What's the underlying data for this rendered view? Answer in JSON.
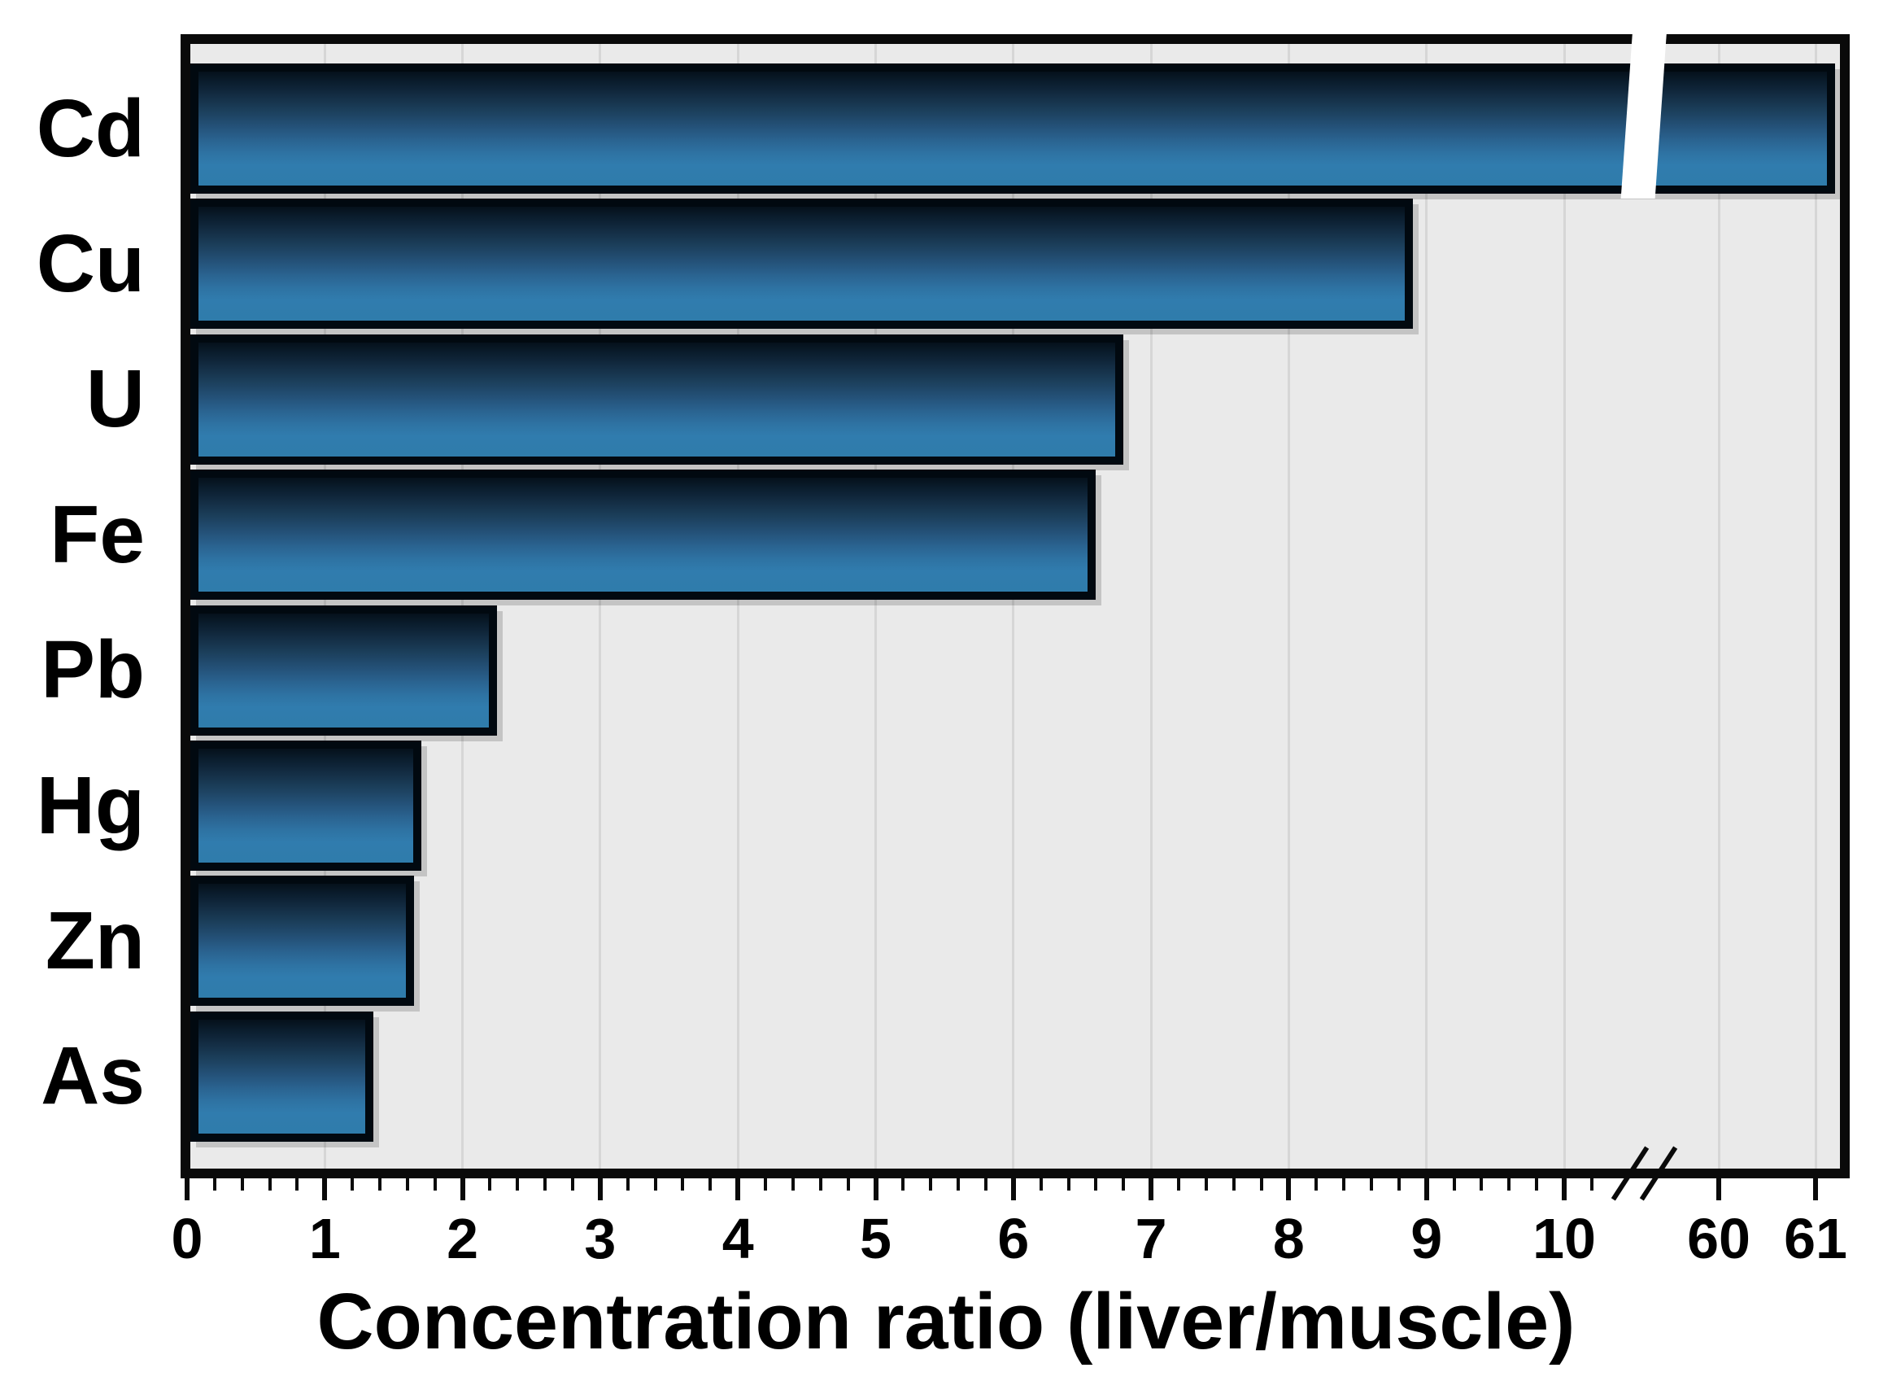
{
  "chart_data": {
    "type": "bar",
    "orientation": "horizontal",
    "title": "",
    "xlabel": "Concentration ratio (liver/muscle)",
    "ylabel": "",
    "categories": [
      "Cd",
      "Cu",
      "U",
      "Fe",
      "Pb",
      "Hg",
      "Zn",
      "As"
    ],
    "values": [
      61.2,
      8.9,
      6.8,
      6.6,
      2.25,
      1.7,
      1.65,
      1.35
    ],
    "x_axis": {
      "tick_values": [
        0,
        1,
        2,
        3,
        4,
        5,
        6,
        7,
        8,
        9,
        10,
        60,
        61
      ],
      "tick_labels": [
        "0",
        "1",
        "2",
        "3",
        "4",
        "5",
        "6",
        "7",
        "8",
        "9",
        "10",
        "60",
        "61"
      ],
      "minor_tick_step": 0.2,
      "range_left_segment": [
        0,
        10.6
      ],
      "range_right_segment": [
        59.7,
        61.3
      ],
      "axis_break": {
        "after": 10.4,
        "resume": 59.7,
        "style": "double-slash"
      }
    },
    "grid": "vertical-major-gridlines",
    "legend": "none",
    "bar_has_black_outline": true,
    "bar_broken_by_axis_gap": "Cd",
    "colors": {
      "bar_gradient_top": "#05101b",
      "bar_gradient_middle": "#245178",
      "bar_gradient_bottom": "#2f7cab",
      "bar_outline": "#010910",
      "plot_background": "#eaeaea",
      "gridline": "#d6d6d6",
      "frame": "#0a0a0a",
      "text": "#000000",
      "break_gap": "#ffffff",
      "page_background": "#ffffff"
    }
  }
}
